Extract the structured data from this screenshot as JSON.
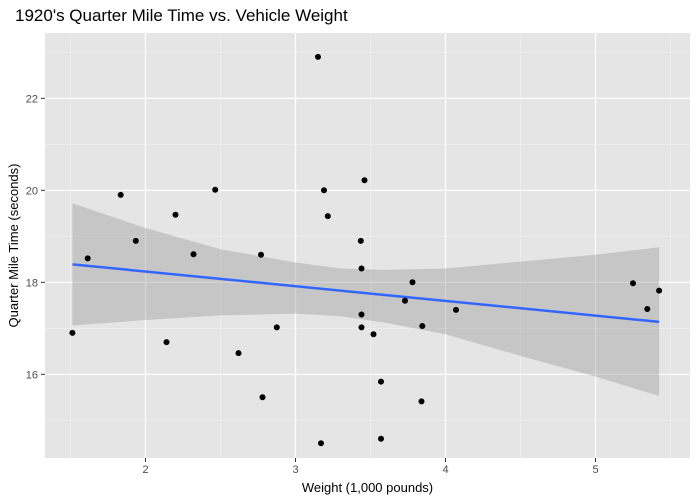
{
  "chart_data": {
    "type": "scatter",
    "title": "1920's Quarter Mile Time vs. Vehicle Weight",
    "xlabel": "Weight (1,000 pounds)",
    "ylabel": "Quarter Mile Time (seconds)",
    "xlim": [
      1.33,
      5.63
    ],
    "ylim": [
      14.18,
      23.42
    ],
    "xticks": [
      2,
      3,
      4,
      5
    ],
    "yticks": [
      16,
      18,
      20,
      22
    ],
    "grid": true,
    "points": [
      {
        "x": 1.513,
        "y": 16.9
      },
      {
        "x": 1.615,
        "y": 18.52
      },
      {
        "x": 1.835,
        "y": 19.9
      },
      {
        "x": 1.935,
        "y": 18.9
      },
      {
        "x": 2.14,
        "y": 16.7
      },
      {
        "x": 2.2,
        "y": 19.47
      },
      {
        "x": 2.32,
        "y": 18.61
      },
      {
        "x": 2.465,
        "y": 20.01
      },
      {
        "x": 2.62,
        "y": 16.46
      },
      {
        "x": 2.77,
        "y": 18.6
      },
      {
        "x": 2.78,
        "y": 15.5
      },
      {
        "x": 2.875,
        "y": 17.02
      },
      {
        "x": 3.15,
        "y": 22.9
      },
      {
        "x": 3.17,
        "y": 14.5
      },
      {
        "x": 3.19,
        "y": 20.0
      },
      {
        "x": 3.215,
        "y": 19.44
      },
      {
        "x": 3.435,
        "y": 18.9
      },
      {
        "x": 3.44,
        "y": 17.02
      },
      {
        "x": 3.44,
        "y": 18.3
      },
      {
        "x": 3.44,
        "y": 17.3
      },
      {
        "x": 3.46,
        "y": 20.22
      },
      {
        "x": 3.52,
        "y": 16.87
      },
      {
        "x": 3.57,
        "y": 15.84
      },
      {
        "x": 3.57,
        "y": 14.6
      },
      {
        "x": 3.73,
        "y": 17.6
      },
      {
        "x": 3.78,
        "y": 18.0
      },
      {
        "x": 3.84,
        "y": 15.41
      },
      {
        "x": 3.845,
        "y": 17.05
      },
      {
        "x": 4.07,
        "y": 17.4
      },
      {
        "x": 5.25,
        "y": 17.98
      },
      {
        "x": 5.345,
        "y": 17.42
      },
      {
        "x": 5.424,
        "y": 17.82
      }
    ],
    "trend_line": {
      "color": "#3366ff",
      "x": [
        1.513,
        5.424
      ],
      "y": [
        18.39,
        17.14
      ]
    },
    "confidence_band": {
      "color": "#999999",
      "x": [
        1.513,
        2.0,
        2.5,
        3.0,
        3.3,
        3.6,
        4.0,
        4.5,
        5.0,
        5.424
      ],
      "upper": [
        19.72,
        19.18,
        18.72,
        18.43,
        18.3,
        18.27,
        18.3,
        18.45,
        18.6,
        18.76
      ],
      "lower": [
        17.06,
        17.18,
        17.28,
        17.32,
        17.26,
        17.12,
        16.87,
        16.4,
        15.95,
        15.53
      ]
    },
    "colors": {
      "panel_background": "#e5e5e5",
      "grid_major": "#ffffff",
      "point": "#000000"
    }
  }
}
